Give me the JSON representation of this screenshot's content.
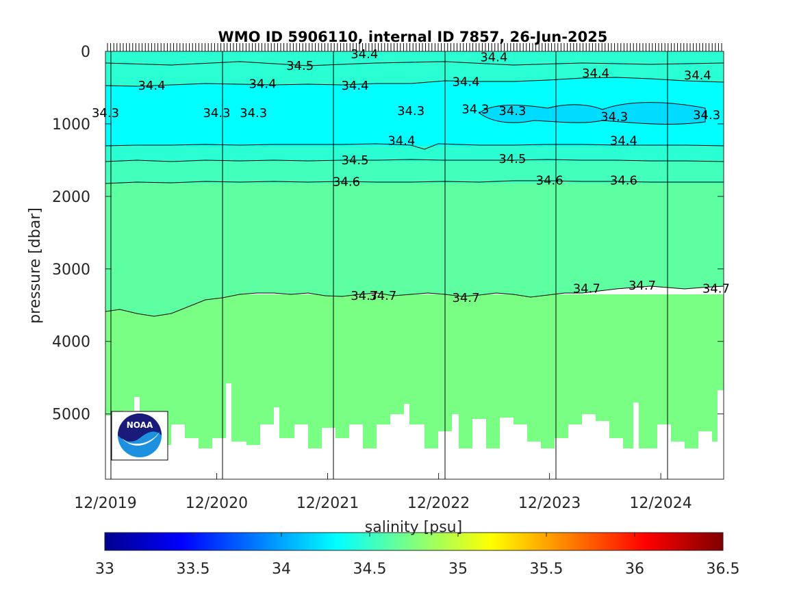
{
  "chart_data": {
    "type": "heatmap",
    "title": "WMO ID 5906110, internal ID 7857, 26-Jun-2025",
    "ylabel": "pressure [dbar]",
    "xlabel": "",
    "ylim": [
      0,
      5900
    ],
    "y_reversed": true,
    "yticks": [
      0,
      1000,
      2000,
      3000,
      4000,
      5000
    ],
    "ytick_labels": [
      "0",
      "1000",
      "2000",
      "3000",
      "4000",
      "5000"
    ],
    "xlim": [
      "2019-12-01",
      "2025-06-26"
    ],
    "xtick_labels": [
      "12/2019",
      "12/2020",
      "12/2021",
      "12/2022",
      "12/2023",
      "12/2024"
    ],
    "colorbar": {
      "label": "salinity [psu]",
      "range": [
        33,
        36.5
      ],
      "colormap": "jet",
      "ticks": [
        33,
        33.5,
        34,
        34.5,
        35,
        35.5,
        36,
        36.5
      ],
      "tick_labels": [
        "33",
        "33.5",
        "34",
        "34.5",
        "35",
        "35.5",
        "36",
        "36.5"
      ]
    },
    "contour_bands": [
      {
        "range": "34.3-34.4",
        "color": "#00ffff"
      },
      {
        "range": "34.4-34.5",
        "color": "#2affd3"
      },
      {
        "range": "34.5-34.6",
        "color": "#43ffbc"
      },
      {
        "range": "34.6-34.7",
        "color": "#5effa1"
      },
      {
        "range": ">34.7",
        "color": "#7aff85"
      }
    ],
    "contours": [
      {
        "level": "34.3",
        "pressure": 850
      },
      {
        "level": "34.4",
        "pressure": 1320
      },
      {
        "level": "34.5",
        "pressure": 1520
      },
      {
        "level": "34.6",
        "pressure": 1800
      },
      {
        "level": "34.7",
        "pressure": 3400
      }
    ],
    "contour_labels": [
      {
        "text": "34.4",
        "date": "2020-05",
        "p": 470
      },
      {
        "text": "34.4",
        "date": "2021-05",
        "p": 450
      },
      {
        "text": "34.4",
        "date": "2023-03",
        "p": 420
      },
      {
        "text": "34.4",
        "date": "2024-05",
        "p": 300
      },
      {
        "text": "34.4",
        "date": "2025-04",
        "p": 330
      },
      {
        "text": "34.4",
        "date": "2022-04",
        "p": 40
      },
      {
        "text": "34.4",
        "date": "2023-06",
        "p": 80
      },
      {
        "text": "34.5",
        "date": "2021-09",
        "p": 200
      },
      {
        "text": "34.4",
        "date": "2022-03",
        "p": 470
      },
      {
        "text": "34.3",
        "date": "2019-12",
        "p": 850
      },
      {
        "text": "34.3",
        "date": "2020-12",
        "p": 850
      },
      {
        "text": "34.3",
        "date": "2021-04",
        "p": 850
      },
      {
        "text": "34.3",
        "date": "2022-09",
        "p": 820
      },
      {
        "text": "34.3",
        "date": "2023-04",
        "p": 800
      },
      {
        "text": "34.3",
        "date": "2023-08",
        "p": 820
      },
      {
        "text": "34.3",
        "date": "2024-07",
        "p": 900
      },
      {
        "text": "34.3",
        "date": "2025-05",
        "p": 880
      },
      {
        "text": "34.4",
        "date": "2022-08",
        "p": 1230
      },
      {
        "text": "34.4",
        "date": "2024-08",
        "p": 1230
      },
      {
        "text": "34.5",
        "date": "2022-03",
        "p": 1500
      },
      {
        "text": "34.5",
        "date": "2023-08",
        "p": 1480
      },
      {
        "text": "34.6",
        "date": "2022-02",
        "p": 1800
      },
      {
        "text": "34.6",
        "date": "2023-12",
        "p": 1780
      },
      {
        "text": "34.6",
        "date": "2024-08",
        "p": 1780
      },
      {
        "text": "34.7",
        "date": "2022-04",
        "p": 3370
      },
      {
        "text": "34.7",
        "date": "2022-06",
        "p": 3370
      },
      {
        "text": "34.7",
        "date": "2023-03",
        "p": 3400
      },
      {
        "text": "34.7",
        "date": "2024-04",
        "p": 3270
      },
      {
        "text": "34.7",
        "date": "2024-10",
        "p": 3230
      },
      {
        "text": "34.7",
        "date": "2025-06",
        "p": 3270
      }
    ],
    "bottom_depth_note": "profile depths vary roughly 5000-5500 dbar"
  },
  "logo": {
    "text": "NOAA"
  }
}
